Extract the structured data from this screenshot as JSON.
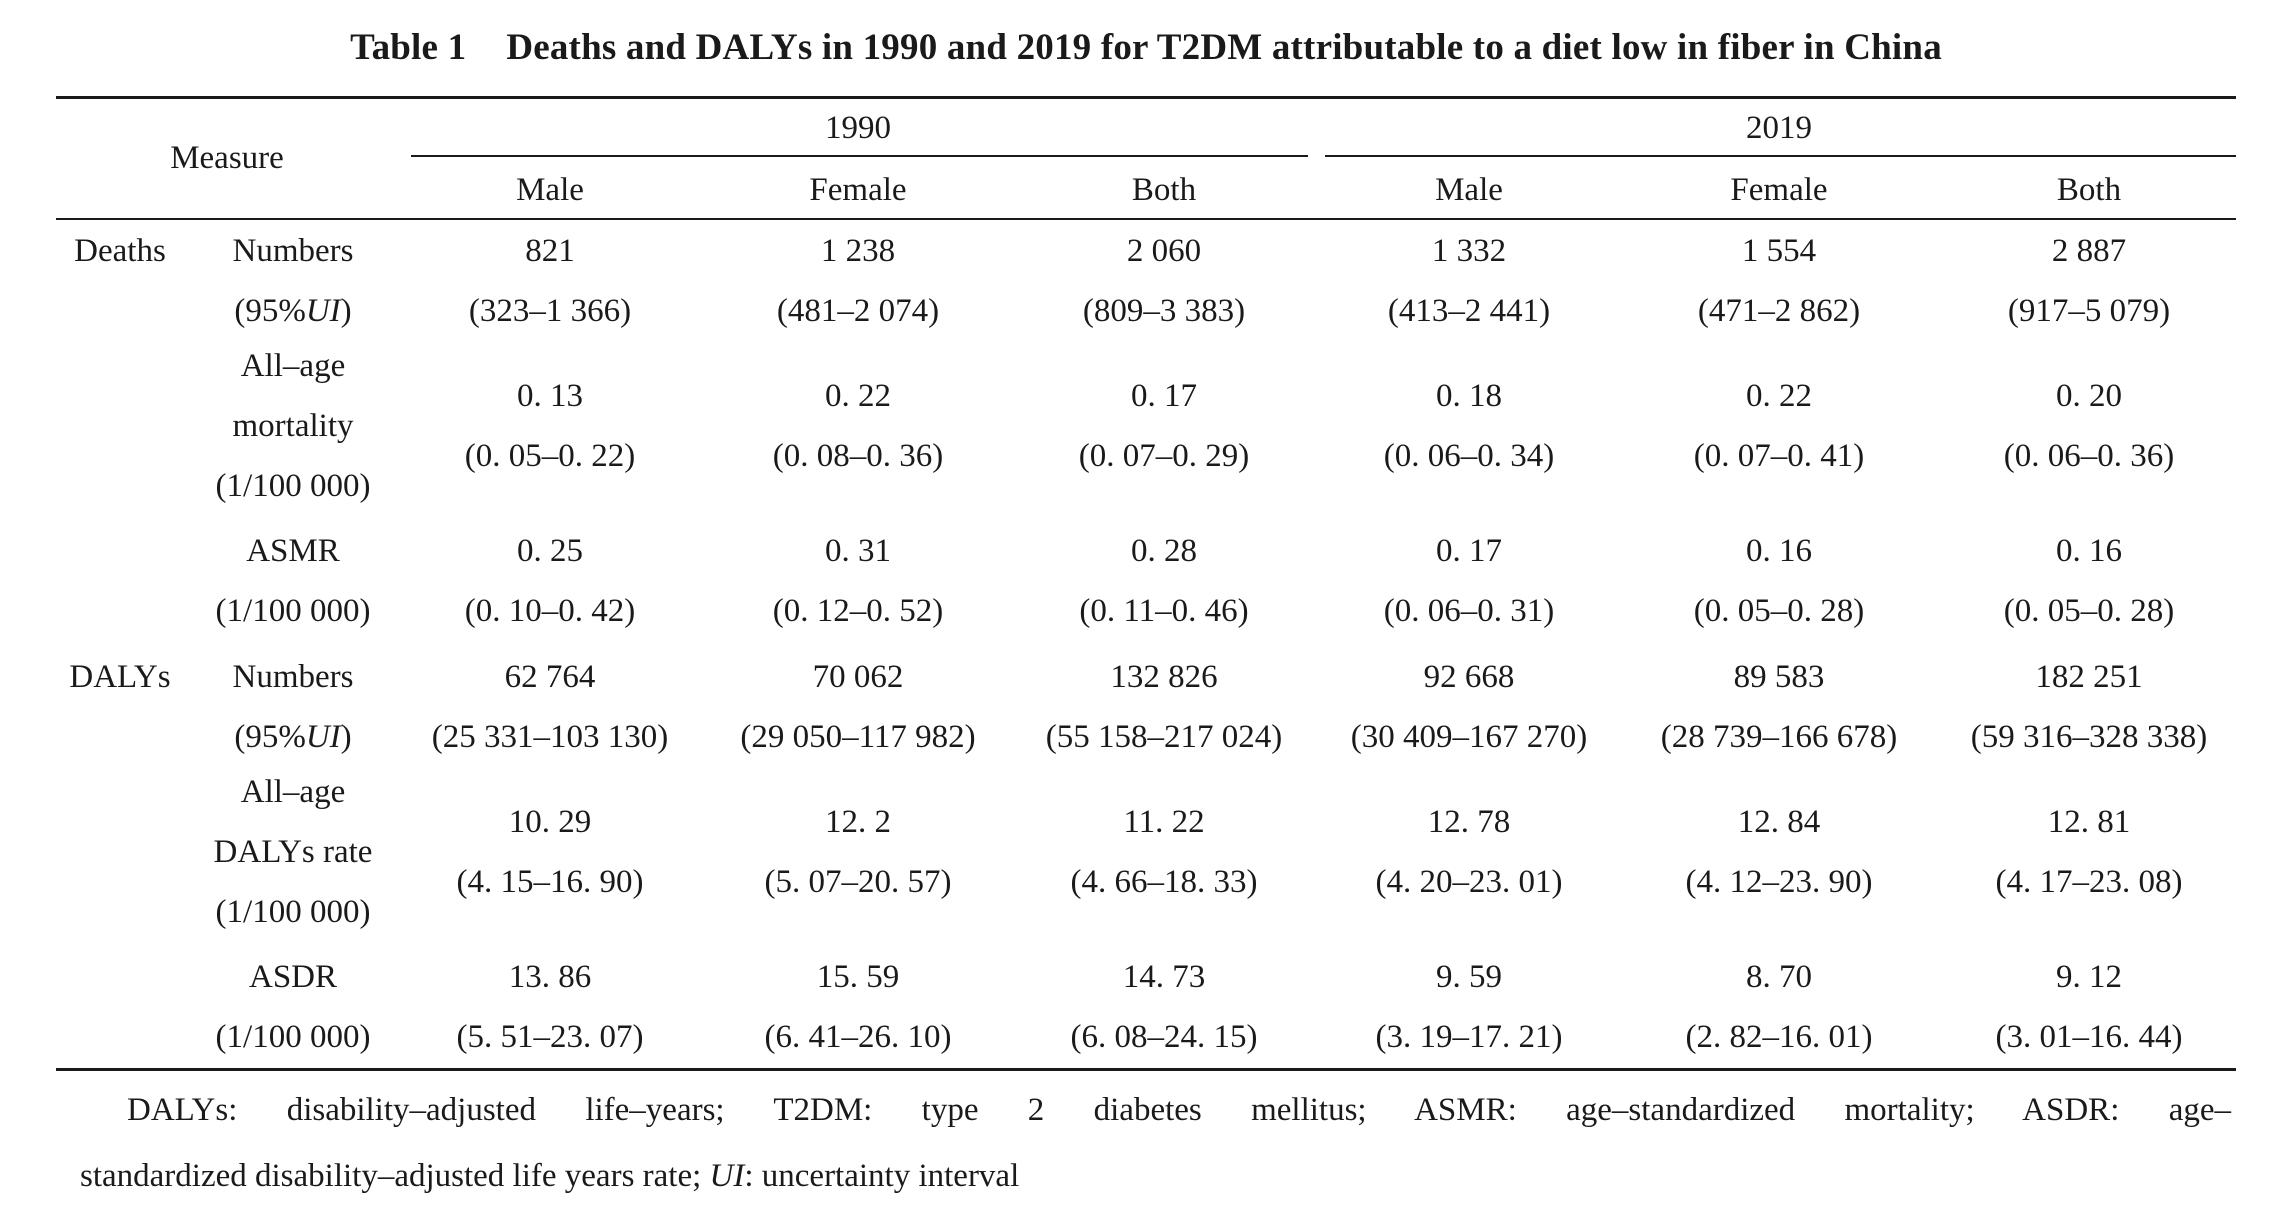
{
  "title": {
    "number": "Table 1",
    "text": "Deaths and DALYs in 1990 and 2019 for T2DM attributable to a diet low in fiber in China"
  },
  "header": {
    "measure": "Measure",
    "year1": "1990",
    "year2": "2019",
    "sub": [
      "Male",
      "Female",
      "Both",
      "Male",
      "Female",
      "Both"
    ]
  },
  "rows": [
    {
      "group": "Deaths",
      "label": [
        "Numbers",
        "(95%UI)"
      ],
      "values": [
        [
          "821",
          "(323–1 366)"
        ],
        [
          "1 238",
          "(481–2 074)"
        ],
        [
          "2 060",
          "(809–3 383)"
        ],
        [
          "1 332",
          "(413–2 441)"
        ],
        [
          "1 554",
          "(471–2 862)"
        ],
        [
          "2 887",
          "(917–5 079)"
        ]
      ]
    },
    {
      "group": "",
      "label": [
        "All–age",
        "mortality",
        "(1/100 000)"
      ],
      "values": [
        [
          "0. 13",
          "(0. 05–0. 22)"
        ],
        [
          "0. 22",
          "(0. 08–0. 36)"
        ],
        [
          "0. 17",
          "(0. 07–0. 29)"
        ],
        [
          "0. 18",
          "(0. 06–0. 34)"
        ],
        [
          "0. 22",
          "(0. 07–0. 41)"
        ],
        [
          "0. 20",
          "(0. 06–0. 36)"
        ]
      ]
    },
    {
      "group": "",
      "label": [
        "ASMR",
        "(1/100 000)"
      ],
      "values": [
        [
          "0. 25",
          "(0. 10–0. 42)"
        ],
        [
          "0. 31",
          "(0. 12–0. 52)"
        ],
        [
          "0. 28",
          "(0. 11–0. 46)"
        ],
        [
          "0. 17",
          "(0. 06–0. 31)"
        ],
        [
          "0. 16",
          "(0. 05–0. 28)"
        ],
        [
          "0. 16",
          "(0. 05–0. 28)"
        ]
      ]
    },
    {
      "group": "DALYs",
      "label": [
        "Numbers",
        "(95%UI)"
      ],
      "values": [
        [
          "62 764",
          "(25 331–103 130)"
        ],
        [
          "70 062",
          "(29 050–117 982)"
        ],
        [
          "132 826",
          "(55 158–217 024)"
        ],
        [
          "92 668",
          "(30 409–167 270)"
        ],
        [
          "89 583",
          "(28 739–166 678)"
        ],
        [
          "182 251",
          "(59 316–328 338)"
        ]
      ]
    },
    {
      "group": "",
      "label": [
        "All–age",
        "DALYs rate",
        "(1/100 000)"
      ],
      "values": [
        [
          "10. 29",
          "(4. 15–16. 90)"
        ],
        [
          "12. 2",
          "(5. 07–20. 57)"
        ],
        [
          "11. 22",
          "(4. 66–18. 33)"
        ],
        [
          "12. 78",
          "(4. 20–23. 01)"
        ],
        [
          "12. 84",
          "(4. 12–23. 90)"
        ],
        [
          "12. 81",
          "(4. 17–23. 08)"
        ]
      ]
    },
    {
      "group": "",
      "label": [
        "ASDR",
        "(1/100 000)"
      ],
      "values": [
        [
          "13. 86",
          "(5. 51–23. 07)"
        ],
        [
          "15. 59",
          "(6. 41–26. 10)"
        ],
        [
          "14. 73",
          "(6. 08–24. 15)"
        ],
        [
          "9. 59",
          "(3. 19–17. 21)"
        ],
        [
          "8. 70",
          "(2. 82–16. 01)"
        ],
        [
          "9. 12",
          "(3. 01–16. 44)"
        ]
      ]
    }
  ],
  "notes": {
    "line1": "DALYs: disability–adjusted life–years; T2DM: type 2 diabetes mellitus; ASMR: age–standardized mortality; ASDR: age–",
    "line2_a": "standardized disability–adjusted life years rate; ",
    "line2_ui": "UI",
    "line2_b": ": uncertainty interval"
  }
}
